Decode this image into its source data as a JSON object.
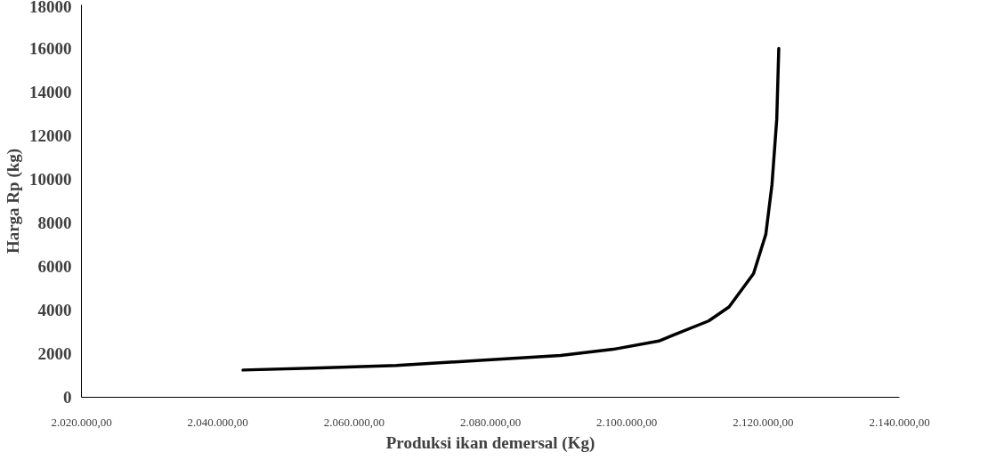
{
  "chart_data": {
    "type": "line",
    "xlabel": "Produksi ikan demersal (Kg)",
    "ylabel": "Harga Rp (kg)",
    "x": [
      2043700,
      2055000,
      2066200,
      2078000,
      2090300,
      2098000,
      2104700,
      2106900,
      2112000,
      2115000,
      2118600,
      2120400,
      2121300,
      2122000,
      2122300
    ],
    "series": [
      {
        "color": "#000000",
        "values": [
          1250,
          1350,
          1460,
          1680,
          1920,
          2200,
          2580,
          2860,
          3500,
          4140,
          5670,
          7480,
          9750,
          12750,
          16000
        ]
      }
    ],
    "xlim": [
      2020000,
      2140000
    ],
    "ylim": [
      0,
      18000
    ],
    "xticks": [
      {
        "value": 2020000,
        "label": "2.020.000,00"
      },
      {
        "value": 2040000,
        "label": "2.040.000,00"
      },
      {
        "value": 2060000,
        "label": "2.060.000,00"
      },
      {
        "value": 2080000,
        "label": "2.080.000,00"
      },
      {
        "value": 2100000,
        "label": "2.100.000,00"
      },
      {
        "value": 2120000,
        "label": "2.120.000,00"
      },
      {
        "value": 2140000,
        "label": "2.140.000,00"
      }
    ],
    "yticks": [
      0,
      2000,
      4000,
      6000,
      8000,
      10000,
      12000,
      14000,
      16000,
      18000
    ],
    "grid": false,
    "marker": "none",
    "line_style": "solid"
  }
}
